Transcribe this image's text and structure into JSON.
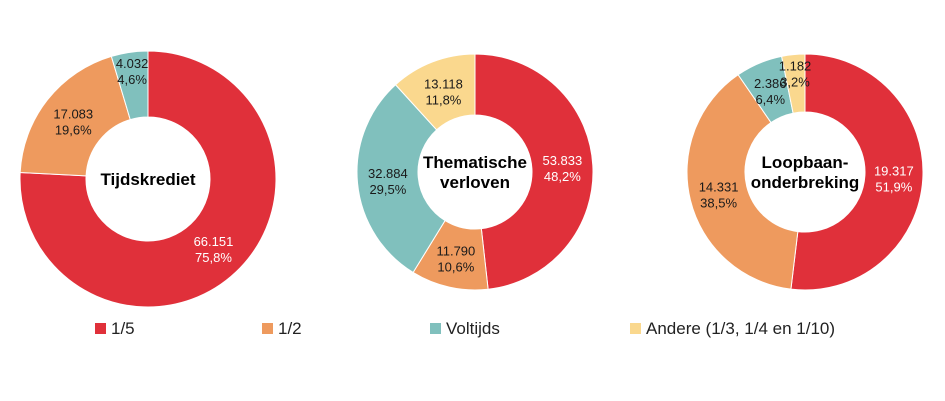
{
  "colors": {
    "1/5": "#e0303a",
    "1/2": "#ee9a5e",
    "Voltijds": "#80c0bd",
    "Andere": "#fad88e"
  },
  "legend": [
    {
      "key": "1/5",
      "label": "1/5"
    },
    {
      "key": "1/2",
      "label": "1/2"
    },
    {
      "key": "Voltijds",
      "label": "Voltijds"
    },
    {
      "key": "Andere",
      "label": "Andere (1/3, 1/4 en 1/10)"
    }
  ],
  "chart_data": [
    {
      "type": "pie",
      "title_lines": [
        "Tijdskrediet"
      ],
      "slices": [
        {
          "key": "1/5",
          "value": 66151,
          "value_label": "66.151",
          "pct_label": "75,8%",
          "label_color": "#ffffff"
        },
        {
          "key": "1/2",
          "value": 17083,
          "value_label": "17.083",
          "pct_label": "19,6%",
          "label_color": "#1a1a1a"
        },
        {
          "key": "Voltijds",
          "value": 4032,
          "value_label": "4.032",
          "pct_label": "4,6%",
          "label_color": "#1a1a1a"
        }
      ]
    },
    {
      "type": "pie",
      "title_lines": [
        "Thematische",
        "verloven"
      ],
      "slices": [
        {
          "key": "1/5",
          "value": 53833,
          "value_label": "53.833",
          "pct_label": "48,2%",
          "label_color": "#ffffff"
        },
        {
          "key": "1/2",
          "value": 11790,
          "value_label": "11.790",
          "pct_label": "10,6%",
          "label_color": "#1a1a1a"
        },
        {
          "key": "Voltijds",
          "value": 32884,
          "value_label": "32.884",
          "pct_label": "29,5%",
          "label_color": "#1a1a1a"
        },
        {
          "key": "Andere",
          "value": 13118,
          "value_label": "13.118",
          "pct_label": "11,8%",
          "label_color": "#1a1a1a"
        }
      ]
    },
    {
      "type": "pie",
      "title_lines": [
        "Loopbaan-",
        "onderbreking"
      ],
      "slices": [
        {
          "key": "1/5",
          "value": 19317,
          "value_label": "19.317",
          "pct_label": "51,9%",
          "label_color": "#ffffff"
        },
        {
          "key": "1/2",
          "value": 14331,
          "value_label": "14.331",
          "pct_label": "38,5%",
          "label_color": "#1a1a1a"
        },
        {
          "key": "Voltijds",
          "value": 2386,
          "value_label": "2.386",
          "pct_label": "6,4%",
          "label_color": "#1a1a1a"
        },
        {
          "key": "Andere",
          "value": 1182,
          "value_label": "1.182",
          "pct_label": "3,2%",
          "label_color": "#1a1a1a"
        }
      ]
    }
  ]
}
